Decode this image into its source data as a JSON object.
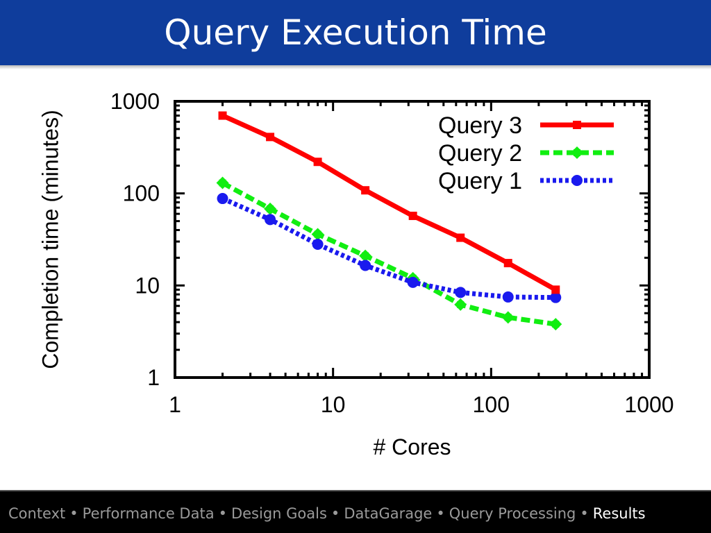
{
  "slide": {
    "title": "Query Execution Time"
  },
  "nav": {
    "items": [
      "Context",
      "Performance Data",
      "Design Goals",
      "DataGarage",
      "Query Processing"
    ],
    "current": "Results",
    "separator": "•"
  },
  "colors": {
    "title_bar": "#0f3d9c",
    "query3": "#ff0000",
    "query2": "#11ee11",
    "query1": "#1a1aee"
  },
  "chart_data": {
    "type": "line",
    "xlabel": "# Cores",
    "ylabel": "Completion time (minutes)",
    "xscale": "log",
    "yscale": "log",
    "xlim": [
      1,
      1000
    ],
    "ylim": [
      1,
      1000
    ],
    "xticks": [
      "1",
      "10",
      "100",
      "1000"
    ],
    "yticks": [
      "1",
      "10",
      "100",
      "1000"
    ],
    "legend_position": "top-right",
    "x": [
      2,
      4,
      8,
      16,
      32,
      64,
      128,
      256
    ],
    "series": [
      {
        "name": "Query 3",
        "values": [
          700,
          410,
          220,
          108,
          57,
          33,
          17.5,
          9
        ],
        "color": "#ff0000",
        "style": "solid",
        "marker": "square"
      },
      {
        "name": "Query 2",
        "values": [
          130,
          68,
          36,
          21,
          12,
          6.2,
          4.5,
          3.8
        ],
        "color": "#11ee11",
        "style": "dashed",
        "marker": "diamond"
      },
      {
        "name": "Query 1",
        "values": [
          88,
          52,
          28,
          16.5,
          10.8,
          8.4,
          7.5,
          7.4
        ],
        "color": "#1a1aee",
        "style": "dotted",
        "marker": "circle"
      }
    ]
  }
}
